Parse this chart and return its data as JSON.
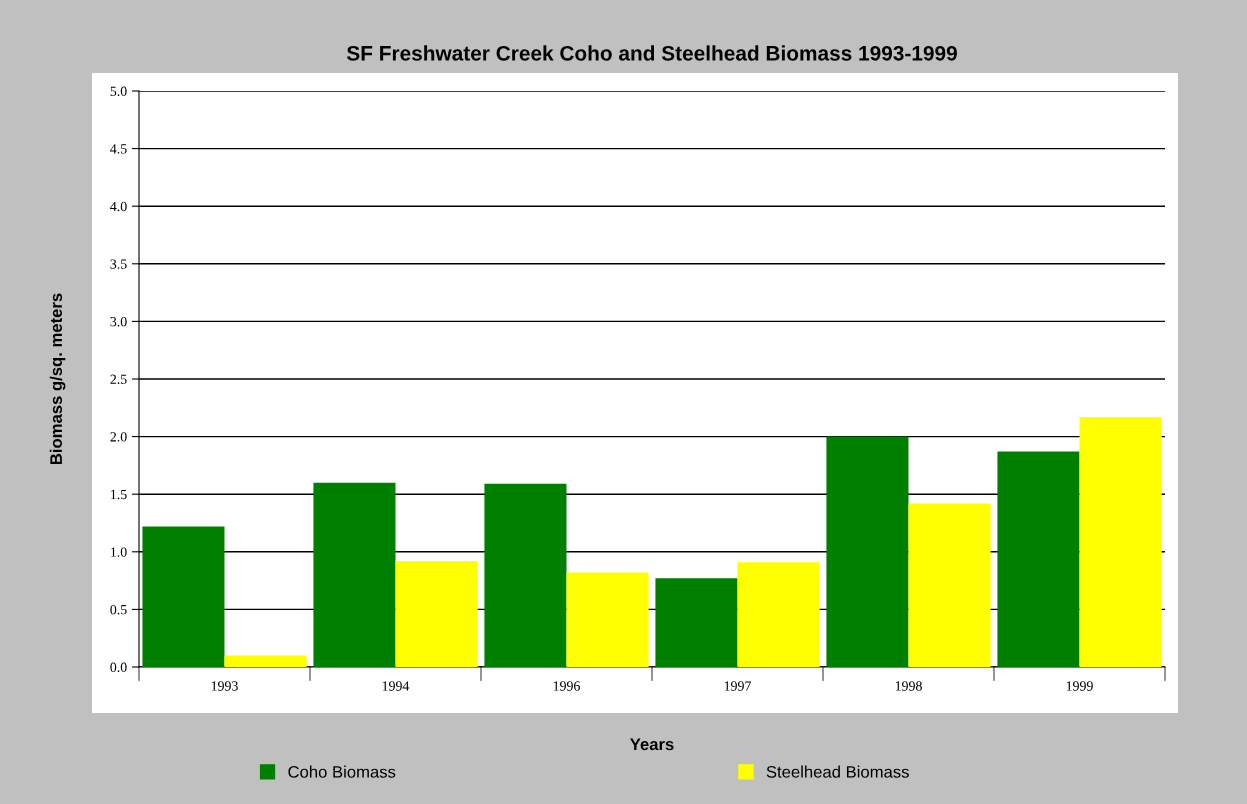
{
  "chart_data": {
    "type": "bar",
    "title": "SF Freshwater Creek Coho and Steelhead Biomass 1993-1999",
    "xlabel": "Years",
    "ylabel": "Biomass g/sq. meters",
    "categories": [
      "1993",
      "1994",
      "1996",
      "1997",
      "1998",
      "1999"
    ],
    "series": [
      {
        "name": "Coho Biomass",
        "color": "#008000",
        "values": [
          1.22,
          1.6,
          1.59,
          0.77,
          2.0,
          1.87
        ]
      },
      {
        "name": "Steelhead Biomass",
        "color": "#ffff00",
        "values": [
          0.1,
          0.92,
          0.82,
          0.91,
          1.42,
          2.17
        ]
      }
    ],
    "ylim": [
      0,
      5
    ],
    "yticks": [
      {
        "value": 0,
        "label": "0.0"
      },
      0.5,
      {
        "value": 1,
        "label": "1.0"
      },
      1.5,
      {
        "value": 2,
        "label": "2.0"
      },
      2.5,
      {
        "value": 3,
        "label": "3.0"
      },
      3.5,
      {
        "value": 4,
        "label": "4.0"
      },
      4.5,
      {
        "value": 5,
        "label": "5.0"
      }
    ],
    "grid": "y",
    "legend": "bottom"
  }
}
